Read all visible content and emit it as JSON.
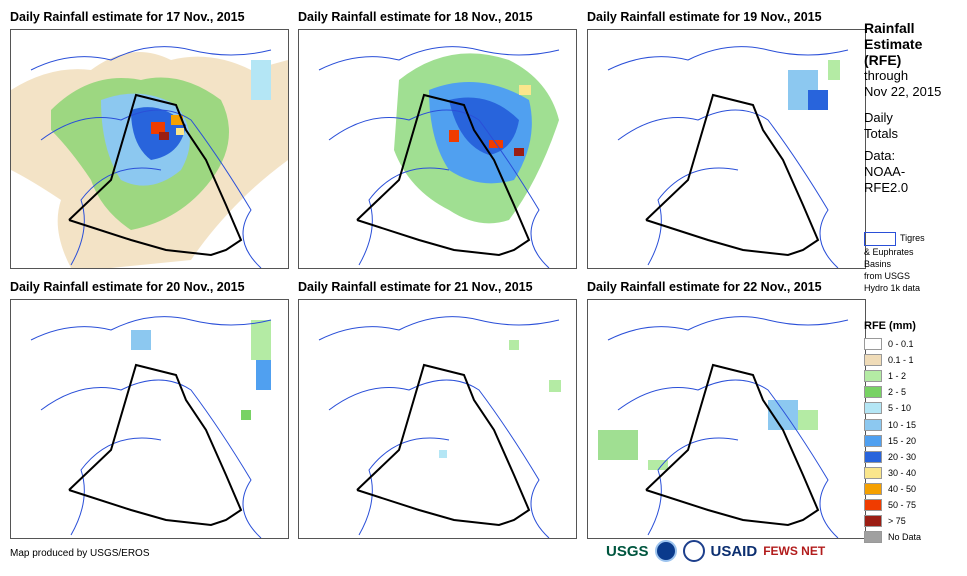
{
  "panels": [
    {
      "title": "Daily Rainfall estimate for 17 Nov., 2015"
    },
    {
      "title": "Daily Rainfall estimate for 18 Nov., 2015"
    },
    {
      "title": "Daily Rainfall estimate for 19 Nov., 2015"
    },
    {
      "title": "Daily Rainfall estimate for 20 Nov., 2015"
    },
    {
      "title": "Daily Rainfall estimate for 21 Nov., 2015"
    },
    {
      "title": "Daily Rainfall estimate for 22 Nov., 2015"
    }
  ],
  "sidebar": {
    "title_lines": [
      "Rainfall",
      "Estimate",
      "(RFE)"
    ],
    "through_lines": [
      "through",
      "Nov 22, 2015"
    ],
    "daily_lines": [
      "Daily",
      "Totals"
    ],
    "data_lines": [
      "Data:",
      "NOAA-",
      "RFE2.0"
    ],
    "basin_label_lines": [
      "Tigres",
      "& Euphrates",
      "Basins",
      "from USGS",
      "Hydro 1k data"
    ]
  },
  "legend": {
    "title": "RFE (mm)",
    "items": [
      {
        "label": "0 - 0.1",
        "color": "#ffffff"
      },
      {
        "label": "0.1 - 1",
        "color": "#f0dcb8"
      },
      {
        "label": "1 - 2",
        "color": "#b4eba4"
      },
      {
        "label": "2 - 5",
        "color": "#78d264"
      },
      {
        "label": "5 - 10",
        "color": "#b4e6f5"
      },
      {
        "label": "10 - 15",
        "color": "#8cc8f0"
      },
      {
        "label": "15 - 20",
        "color": "#50a0f0"
      },
      {
        "label": "20 - 30",
        "color": "#2864dc"
      },
      {
        "label": "30 - 40",
        "color": "#fae68c"
      },
      {
        "label": "40 - 50",
        "color": "#f5a000"
      },
      {
        "label": "50 - 75",
        "color": "#f03c00"
      },
      {
        "label": "> 75",
        "color": "#9b1e14"
      },
      {
        "label": "No Data",
        "color": "#a0a0a0"
      }
    ]
  },
  "footer": {
    "credit": "Map produced by USGS/EROS"
  },
  "logos": {
    "usgs": "USGS",
    "usaid": "USAID",
    "fewsnet": "FEWS NET"
  }
}
